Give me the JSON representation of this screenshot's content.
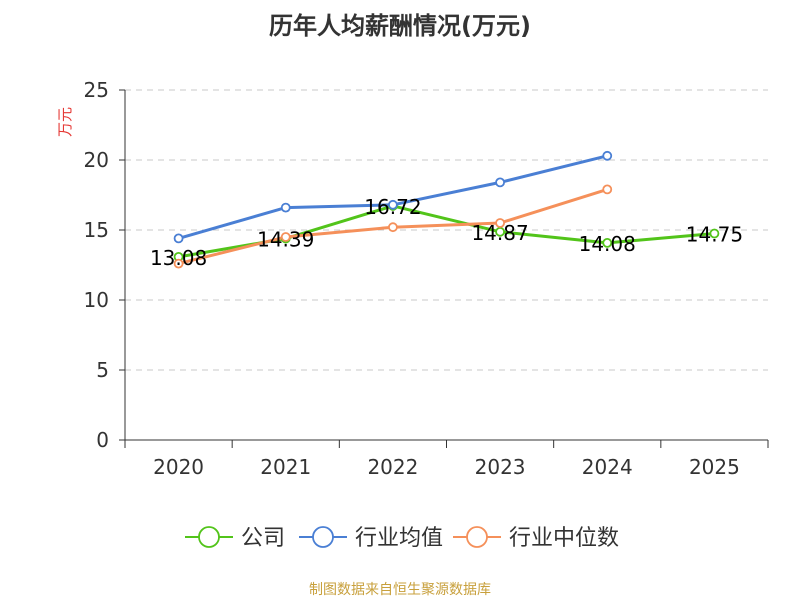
{
  "chart_data": {
    "type": "line",
    "title": "历年人均薪酬情况(万元)",
    "ylabel": "万元",
    "xlabel": "",
    "categories": [
      "2020",
      "2021",
      "2022",
      "2023",
      "2024",
      "2025"
    ],
    "ylim": [
      0,
      25
    ],
    "yticks": [
      "0",
      "5",
      "10",
      "15",
      "20",
      "25"
    ],
    "grid": true,
    "legend_position": "bottom",
    "series": [
      {
        "name": "公司",
        "color": "#52c41a",
        "values": [
          13.08,
          14.39,
          16.72,
          14.87,
          14.08,
          14.75
        ],
        "labels": [
          "13.08",
          "14.39",
          "16.72",
          "14.87",
          "14.08",
          "14.75"
        ]
      },
      {
        "name": "行业均值",
        "color": "#4a7fd4",
        "values": [
          14.4,
          16.6,
          16.8,
          18.4,
          20.3,
          null
        ]
      },
      {
        "name": "行业中位数",
        "color": "#f5905a",
        "values": [
          12.6,
          14.5,
          15.2,
          15.5,
          17.9,
          null
        ]
      }
    ]
  },
  "source": "制图数据来自恒生聚源数据库"
}
